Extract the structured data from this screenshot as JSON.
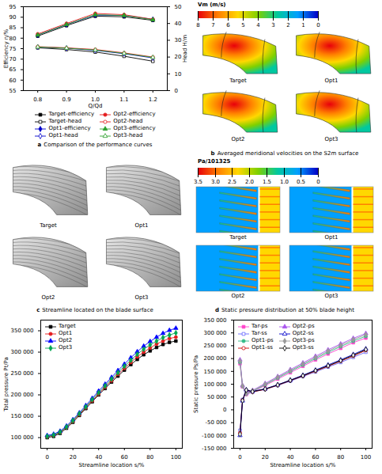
{
  "chart_data": [
    {
      "type": "line",
      "panel_label": "a",
      "title": "Comparison of the performance curves",
      "x_label": "Q/Qd",
      "y_label": "Efficiency η/%",
      "y2_label": "Head H/m",
      "x": [
        0.8,
        0.9,
        1,
        1.1,
        1.2
      ],
      "xlim": [
        0.75,
        1.25
      ],
      "xticks": [
        0.8,
        0.9,
        {
          "value": 1,
          "label": "1.0"
        },
        1.1,
        1.2
      ],
      "ylim": [
        55,
        95
      ],
      "yticks": [
        55,
        60,
        65,
        70,
        75,
        80,
        85,
        90,
        95
      ],
      "y2lim": [
        0,
        50
      ],
      "y2ticks": [
        0,
        10,
        20,
        30,
        40,
        50
      ],
      "grid": false,
      "legend": "bottom",
      "series": [
        {
          "name": "Target-efficiency",
          "color": "#000000",
          "marker": "square",
          "line_style": "solid",
          "values": [
            81,
            86,
            90.5,
            90.2,
            88.5
          ]
        },
        {
          "name": "Target-head",
          "color": "#000000",
          "marker": "open_square",
          "line_style": "solid",
          "axis": "y2",
          "values": [
            25.5,
            24.5,
            23,
            20.5,
            17.5
          ]
        },
        {
          "name": "Opt1-efficiency",
          "color": "#0000cc",
          "marker": "diamond",
          "line_style": "solid",
          "values": [
            81.5,
            86.5,
            91,
            90.8,
            89
          ]
        },
        {
          "name": "Opt1-head",
          "color": "#0000cc",
          "marker": "open_diamond",
          "line_style": "solid",
          "axis": "y2",
          "values": [
            26,
            25.3,
            24,
            22,
            19.5
          ]
        },
        {
          "name": "Opt2-efficiency",
          "color": "#e41a1c",
          "marker": "circle",
          "line_style": "solid",
          "values": [
            82,
            87,
            91.8,
            91.2,
            89
          ]
        },
        {
          "name": "Opt2-head",
          "color": "#e41a1c",
          "marker": "open_circle",
          "line_style": "solid",
          "axis": "y2",
          "values": [
            26.2,
            25.5,
            24.5,
            22.5,
            20
          ]
        },
        {
          "name": "Opt3-efficiency",
          "color": "#2ca02c",
          "marker": "triangle",
          "line_style": "solid",
          "values": [
            81.5,
            86.5,
            91.2,
            90.8,
            88.8
          ]
        },
        {
          "name": "Opt3-head",
          "color": "#2ca02c",
          "marker": "open_triangle",
          "line_style": "solid",
          "axis": "y2",
          "values": [
            26,
            25.3,
            24.2,
            22.2,
            19.8
          ]
        }
      ]
    },
    {
      "type": "contour",
      "panel_label": "b",
      "title": "Averaged meridional velocities on the S2m surface",
      "panels": [
        "Target",
        "Opt1",
        "Opt2",
        "Opt3"
      ],
      "colorbar": {
        "label": "Vm (m/s)",
        "range": [
          0,
          8
        ],
        "ticks": [
          8,
          7,
          6,
          5,
          4,
          3,
          2,
          1,
          0
        ],
        "colors": [
          "#e8000b",
          "#ff7f00",
          "#ffd800",
          "#7fd000",
          "#00c8a0",
          "#00a0ff",
          "#0000c8"
        ]
      }
    },
    {
      "type": "streamlines",
      "panel_label": "c",
      "title": "Streamline located on the blade surface",
      "panels": [
        "Target",
        "Opt1",
        "Opt2",
        "Opt3"
      ]
    },
    {
      "type": "contour",
      "panel_label": "d",
      "title": "Static pressure distribution at 50% blade height",
      "panels": [
        "Target",
        "Opt1",
        "Opt2",
        "Opt3"
      ],
      "colorbar": {
        "label": "Pa/101325",
        "range": [
          0,
          3.5
        ],
        "ticks": [
          3.5,
          {
            "value": 3,
            "label": "3.0"
          },
          2.5,
          {
            "value": 2,
            "label": "2.0"
          },
          1.5,
          {
            "value": 1,
            "label": "1.0"
          },
          0.5,
          0
        ],
        "colors": [
          "#e8000b",
          "#ff7f00",
          "#ffd800",
          "#7fd000",
          "#00c8a0",
          "#00a0ff",
          "#0000c8"
        ]
      }
    },
    {
      "type": "line",
      "x_label": "Streamline location s/%",
      "y_label": "Total pressure Pt/Pa",
      "x": [
        0,
        5,
        10,
        15,
        20,
        25,
        30,
        35,
        40,
        45,
        50,
        55,
        60,
        65,
        70,
        75,
        80,
        85,
        90,
        95,
        100
      ],
      "xlim": [
        -5,
        105
      ],
      "xticks": [
        0,
        20,
        40,
        60,
        80,
        100
      ],
      "ylim": [
        75000,
        375000
      ],
      "yticks": [
        {
          "value": 100000,
          "label": "100 000"
        },
        {
          "value": 150000,
          "label": "150 000"
        },
        {
          "value": 200000,
          "label": "200 000"
        },
        {
          "value": 250000,
          "label": "250 000"
        },
        {
          "value": 300000,
          "label": "300 000"
        },
        {
          "value": 350000,
          "label": "350 000"
        }
      ],
      "grid": false,
      "legend": "top-left",
      "series": [
        {
          "name": "Target",
          "color": "#000000",
          "marker": "square",
          "line_style": "solid",
          "values": [
            100000,
            103000,
            110000,
            122000,
            136000,
            152000,
            168000,
            184000,
            200000,
            215000,
            230000,
            244000,
            258000,
            271000,
            283000,
            294000,
            303000,
            311000,
            318000,
            323000,
            326000
          ]
        },
        {
          "name": "Opt1",
          "color": "#e41a1c",
          "marker": "circle",
          "line_style": "solid",
          "values": [
            102000,
            105000,
            112000,
            124000,
            138000,
            154000,
            170000,
            186000,
            202000,
            218000,
            233000,
            248000,
            262000,
            276000,
            289000,
            300000,
            310000,
            319000,
            326000,
            332000,
            335000
          ]
        },
        {
          "name": "Opt2",
          "color": "#0000ff",
          "marker": "triangle",
          "line_style": "solid",
          "values": [
            105000,
            108000,
            115000,
            127000,
            142000,
            158000,
            175000,
            192000,
            209000,
            225000,
            241000,
            257000,
            272000,
            287000,
            301000,
            314000,
            325000,
            335000,
            344000,
            351000,
            356000
          ]
        },
        {
          "name": "Opt3",
          "color": "#00a651",
          "marker": "diamond",
          "line_style": "solid",
          "values": [
            103000,
            106000,
            113000,
            125000,
            140000,
            156000,
            172000,
            189000,
            205000,
            221000,
            237000,
            252000,
            267000,
            281000,
            295000,
            307000,
            317000,
            326000,
            334000,
            340000,
            345000
          ]
        }
      ]
    },
    {
      "type": "line",
      "x_label": "Streamline location s/%",
      "y_label": "Static pressure Ps/Pa",
      "x": [
        0,
        2,
        5,
        10,
        20,
        30,
        40,
        50,
        60,
        70,
        80,
        90,
        100
      ],
      "xlim": [
        -5,
        105
      ],
      "xticks": [
        0,
        20,
        40,
        60,
        80,
        100
      ],
      "ylim": [
        -150000,
        350000
      ],
      "yticks": [
        {
          "value": -150000,
          "label": "-150 000"
        },
        {
          "value": -100000,
          "label": "-100 000"
        },
        {
          "value": -50000,
          "label": "-50 000"
        },
        0,
        {
          "value": 50000,
          "label": "50 000"
        },
        {
          "value": 100000,
          "label": "100 000"
        },
        {
          "value": 150000,
          "label": "150 000"
        },
        {
          "value": 200000,
          "label": "200 000"
        },
        {
          "value": 250000,
          "label": "250 000"
        },
        {
          "value": 300000,
          "label": "300 000"
        },
        {
          "value": 350000,
          "label": "350 000"
        }
      ],
      "grid": false,
      "legend": "top-left",
      "series": [
        {
          "name": "Tar-ps",
          "color": "#ff44cc",
          "marker": "square",
          "line_style": "solid",
          "values": [
            180000,
            90000,
            60000,
            70000,
            95000,
            120000,
            145000,
            170000,
            195000,
            218000,
            240000,
            262000,
            280000
          ]
        },
        {
          "name": "Tar-ss",
          "color": "#6666ff",
          "marker": "open_square",
          "line_style": "solid",
          "values": [
            -80000,
            40000,
            75000,
            70000,
            80000,
            95000,
            112000,
            130000,
            148000,
            167000,
            185000,
            205000,
            225000
          ]
        },
        {
          "name": "Opt1-ps",
          "color": "#33bb88",
          "marker": "circle",
          "line_style": "solid",
          "values": [
            185000,
            92000,
            62000,
            72000,
            98000,
            124000,
            150000,
            175000,
            200000,
            224000,
            247000,
            268000,
            287000
          ]
        },
        {
          "name": "Opt1-ss",
          "color": "#cc0000",
          "marker": "open_circle",
          "line_style": "solid",
          "values": [
            -90000,
            38000,
            76000,
            70000,
            80000,
            96000,
            114000,
            132000,
            151000,
            170000,
            190000,
            210000,
            232000
          ]
        },
        {
          "name": "Opt2-ps",
          "color": "#aa55ee",
          "marker": "triangle",
          "line_style": "solid",
          "values": [
            195000,
            95000,
            65000,
            76000,
            103000,
            130000,
            157000,
            183000,
            209000,
            234000,
            257000,
            279000,
            298000
          ]
        },
        {
          "name": "Opt2-ss",
          "color": "#0000cc",
          "marker": "open_triangle",
          "line_style": "solid",
          "values": [
            -100000,
            35000,
            78000,
            72000,
            82000,
            98000,
            116000,
            135000,
            155000,
            175000,
            195000,
            216000,
            238000
          ]
        },
        {
          "name": "Opt3-ps",
          "color": "#999999",
          "marker": "diamond",
          "line_style": "solid",
          "values": [
            190000,
            93000,
            63000,
            74000,
            100000,
            127000,
            153000,
            179000,
            204000,
            229000,
            252000,
            274000,
            293000
          ]
        },
        {
          "name": "Opt3-ss",
          "color": "#000000",
          "marker": "open_diamond",
          "line_style": "solid",
          "values": [
            -95000,
            36000,
            77000,
            71000,
            81000,
            97000,
            115000,
            133000,
            153000,
            172000,
            192000,
            213000,
            235000
          ]
        }
      ]
    }
  ]
}
